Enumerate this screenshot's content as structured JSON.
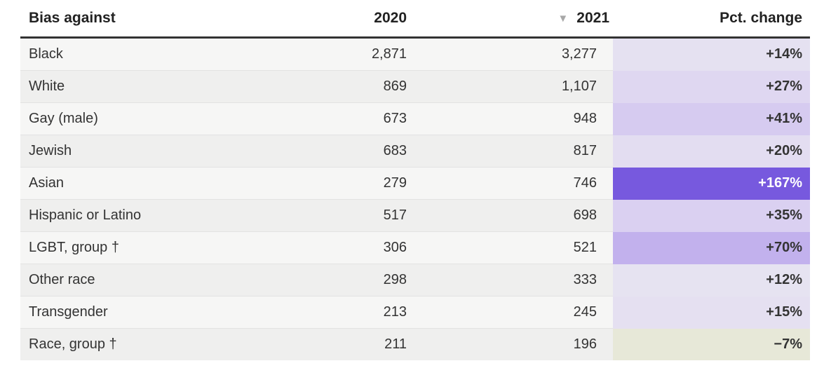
{
  "chart_data": {
    "type": "table",
    "columns": [
      "Bias against",
      "2020",
      "2021",
      "Pct. change"
    ],
    "sort": {
      "column": "2021",
      "direction": "descending"
    },
    "rows": [
      {
        "group": "Black",
        "y2020": "2,871",
        "y2021": "3,277",
        "pct": "+14%",
        "pct_value": 14,
        "fill": "#e5e1f1",
        "text_color": "dark-text"
      },
      {
        "group": "White",
        "y2020": "869",
        "y2021": "1,107",
        "pct": "+27%",
        "pct_value": 27,
        "fill": "#dfd7f1",
        "text_color": "dark-text"
      },
      {
        "group": "Gay (male)",
        "y2020": "673",
        "y2021": "948",
        "pct": "+41%",
        "pct_value": 41,
        "fill": "#d6cbf0",
        "text_color": "dark-text"
      },
      {
        "group": "Jewish",
        "y2020": "683",
        "y2021": "817",
        "pct": "+20%",
        "pct_value": 20,
        "fill": "#e3ddf1",
        "text_color": "dark-text"
      },
      {
        "group": "Asian",
        "y2020": "279",
        "y2021": "746",
        "pct": "+167%",
        "pct_value": 167,
        "fill": "#7759de",
        "text_color": "light-text"
      },
      {
        "group": "Hispanic or Latino",
        "y2020": "517",
        "y2021": "698",
        "pct": "+35%",
        "pct_value": 35,
        "fill": "#dad0f1",
        "text_color": "dark-text"
      },
      {
        "group": "LGBT, group †",
        "y2020": "306",
        "y2021": "521",
        "pct": "+70%",
        "pct_value": 70,
        "fill": "#c2b1ed",
        "text_color": "dark-text"
      },
      {
        "group": "Other race",
        "y2020": "298",
        "y2021": "333",
        "pct": "+12%",
        "pct_value": 12,
        "fill": "#e6e3f1",
        "text_color": "dark-text"
      },
      {
        "group": "Transgender",
        "y2020": "213",
        "y2021": "245",
        "pct": "+15%",
        "pct_value": 15,
        "fill": "#e5e0f1",
        "text_color": "dark-text"
      },
      {
        "group": "Race, group †",
        "y2020": "211",
        "y2021": "196",
        "pct": "−7%",
        "pct_value": -7,
        "fill": "#e7e8d8",
        "text_color": "dark-text"
      }
    ]
  }
}
